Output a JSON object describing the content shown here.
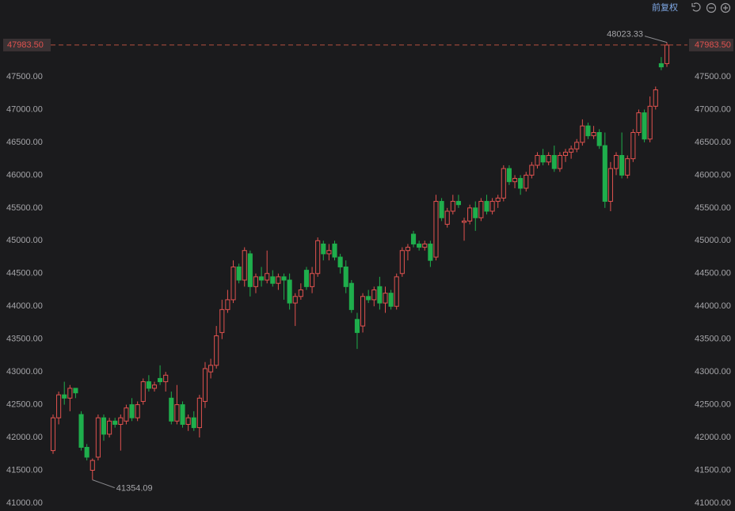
{
  "toolbar": {
    "adjust": "前复权"
  },
  "chart_data": {
    "type": "candlestick",
    "up_color": "#e0524f",
    "down_color": "#1fae4c",
    "ylim": [
      40879,
      48670
    ],
    "yticks": [
      {
        "value": 41000,
        "label": "41000.00"
      },
      {
        "value": 41500,
        "label": "41500.00"
      },
      {
        "value": 42000,
        "label": "42000.00"
      },
      {
        "value": 42500,
        "label": "42500.00"
      },
      {
        "value": 43000,
        "label": "43000.00"
      },
      {
        "value": 43500,
        "label": "43500.00"
      },
      {
        "value": 44000,
        "label": "44000.00"
      },
      {
        "value": 44500,
        "label": "44500.00"
      },
      {
        "value": 45000,
        "label": "45000.00"
      },
      {
        "value": 45500,
        "label": "45500.00"
      },
      {
        "value": 46000,
        "label": "46000.00"
      },
      {
        "value": 46500,
        "label": "46500.00"
      },
      {
        "value": 47000,
        "label": "47000.00"
      },
      {
        "value": 47500,
        "label": "47500.00"
      }
    ],
    "last_price_label": "47983.50",
    "candles": [
      [
        41800,
        42350,
        41750,
        42300
      ],
      [
        42300,
        42700,
        42200,
        42650
      ],
      [
        42650,
        42850,
        42500,
        42600
      ],
      [
        42600,
        42800,
        42400,
        42750
      ],
      [
        42750,
        42750,
        42600,
        42680
      ],
      [
        42350,
        42400,
        41800,
        41850
      ],
      [
        41850,
        41900,
        41650,
        41700
      ],
      [
        41500,
        41680,
        41354.09,
        41650
      ],
      [
        41700,
        42350,
        41650,
        42300
      ],
      [
        42300,
        42350,
        41950,
        42050
      ],
      [
        42050,
        42300,
        42000,
        42250
      ],
      [
        42250,
        42300,
        42150,
        42200
      ],
      [
        42200,
        42350,
        41800,
        42300
      ],
      [
        42250,
        42500,
        42200,
        42450
      ],
      [
        42500,
        42600,
        42250,
        42300
      ],
      [
        42300,
        42550,
        42250,
        42500
      ],
      [
        42550,
        42900,
        42500,
        42850
      ],
      [
        42850,
        42950,
        42700,
        42750
      ],
      [
        42750,
        42850,
        42700,
        42800
      ],
      [
        42900,
        43100,
        42800,
        42850
      ],
      [
        42850,
        43000,
        42700,
        42950
      ],
      [
        42600,
        42700,
        42200,
        42250
      ],
      [
        42250,
        42800,
        42200,
        42500
      ],
      [
        42500,
        42550,
        42150,
        42200
      ],
      [
        42200,
        42350,
        42100,
        42300
      ],
      [
        42300,
        42400,
        42100,
        42150
      ],
      [
        42150,
        42650,
        42000,
        42600
      ],
      [
        42550,
        43150,
        42450,
        43050
      ],
      [
        43000,
        43200,
        42900,
        43100
      ],
      [
        43100,
        43700,
        43050,
        43550
      ],
      [
        43600,
        44100,
        43500,
        43950
      ],
      [
        43950,
        44250,
        43900,
        44100
      ],
      [
        44100,
        44700,
        44050,
        44600
      ],
      [
        44600,
        44650,
        44350,
        44400
      ],
      [
        44400,
        44900,
        44300,
        44850
      ],
      [
        44800,
        44850,
        44150,
        44300
      ],
      [
        44300,
        44500,
        44200,
        44450
      ],
      [
        44450,
        44600,
        44300,
        44400
      ],
      [
        44400,
        44850,
        44350,
        44500
      ],
      [
        44450,
        44550,
        44300,
        44350
      ],
      [
        44350,
        44500,
        44250,
        44450
      ],
      [
        44450,
        44500,
        44100,
        44400
      ],
      [
        44400,
        44500,
        43950,
        44050
      ],
      [
        44050,
        44200,
        43700,
        44150
      ],
      [
        44150,
        44350,
        44100,
        44250
      ],
      [
        44550,
        44600,
        44250,
        44300
      ],
      [
        44300,
        44600,
        44200,
        44500
      ],
      [
        44500,
        45050,
        44450,
        45000
      ],
      [
        44950,
        45000,
        44700,
        44800
      ],
      [
        44800,
        44950,
        44700,
        44850
      ],
      [
        44950,
        45000,
        44700,
        44750
      ],
      [
        44750,
        44800,
        44500,
        44600
      ],
      [
        44600,
        44700,
        44200,
        44300
      ],
      [
        44350,
        44400,
        43900,
        43950
      ],
      [
        43800,
        43900,
        43350,
        43600
      ],
      [
        43700,
        44200,
        43600,
        44150
      ],
      [
        44150,
        44250,
        44050,
        44100
      ],
      [
        44100,
        44300,
        44000,
        44250
      ],
      [
        44300,
        44450,
        43950,
        44050
      ],
      [
        44050,
        44300,
        43900,
        44200
      ],
      [
        44200,
        44250,
        43950,
        44000
      ],
      [
        44000,
        44500,
        43950,
        44450
      ],
      [
        44500,
        44900,
        44450,
        44850
      ],
      [
        44850,
        44950,
        44700,
        44900
      ],
      [
        45100,
        45150,
        44900,
        44950
      ],
      [
        44950,
        45000,
        44850,
        44900
      ],
      [
        44900,
        45000,
        44850,
        44950
      ],
      [
        44950,
        45000,
        44600,
        44700
      ],
      [
        44750,
        45700,
        44700,
        45600
      ],
      [
        45600,
        45650,
        45300,
        45350
      ],
      [
        45250,
        45500,
        45200,
        45450
      ],
      [
        45450,
        45700,
        45400,
        45600
      ],
      [
        45600,
        45700,
        45500,
        45550
      ],
      [
        45280,
        45350,
        45000,
        45300
      ],
      [
        45300,
        45550,
        45250,
        45500
      ],
      [
        45500,
        45600,
        45150,
        45350
      ],
      [
        45350,
        45650,
        45300,
        45600
      ],
      [
        45600,
        45700,
        45400,
        45450
      ],
      [
        45450,
        45650,
        45400,
        45600
      ],
      [
        45600,
        45700,
        45500,
        45650
      ],
      [
        45650,
        46150,
        45600,
        46100
      ],
      [
        46100,
        46150,
        45850,
        45900
      ],
      [
        45900,
        46000,
        45800,
        45950
      ],
      [
        45950,
        46000,
        45700,
        45800
      ],
      [
        45800,
        46050,
        45750,
        46000
      ],
      [
        46000,
        46200,
        45950,
        46150
      ],
      [
        46150,
        46350,
        46100,
        46300
      ],
      [
        46300,
        46400,
        46150,
        46200
      ],
      [
        46200,
        46350,
        46150,
        46300
      ],
      [
        46300,
        46450,
        46050,
        46100
      ],
      [
        46100,
        46350,
        46050,
        46300
      ],
      [
        46300,
        46400,
        46200,
        46350
      ],
      [
        46350,
        46450,
        46250,
        46400
      ],
      [
        46400,
        46550,
        46350,
        46500
      ],
      [
        46500,
        46850,
        46450,
        46750
      ],
      [
        46750,
        46800,
        46550,
        46600
      ],
      [
        46600,
        46750,
        46550,
        46650
      ],
      [
        46650,
        46700,
        46400,
        46450
      ],
      [
        46450,
        46650,
        45500,
        45600
      ],
      [
        45600,
        46200,
        45450,
        46100
      ],
      [
        46100,
        46350,
        46000,
        46300
      ],
      [
        46300,
        46650,
        45950,
        46000
      ],
      [
        46000,
        46300,
        45950,
        46250
      ],
      [
        46250,
        46700,
        46200,
        46650
      ],
      [
        46650,
        47000,
        46600,
        46950
      ],
      [
        46950,
        47000,
        46500,
        46550
      ],
      [
        46550,
        47200,
        46500,
        47050
      ],
      [
        47050,
        47350,
        47000,
        47300
      ],
      [
        47700,
        47800,
        47600,
        47650
      ],
      [
        47700,
        48023.33,
        47650,
        47983.5
      ]
    ]
  }
}
